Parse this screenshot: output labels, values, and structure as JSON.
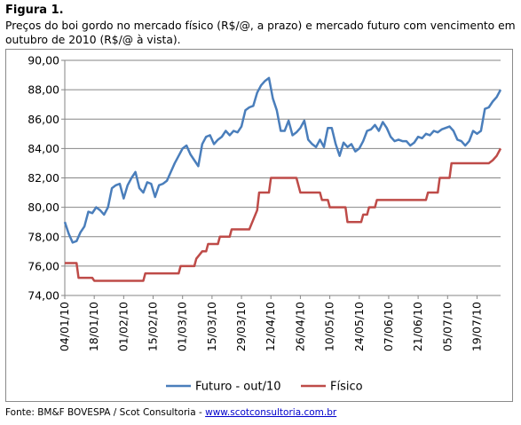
{
  "figure_label": "Figura 1.",
  "caption": "Preços do boi gordo no mercado físico (R$/@, a prazo) e mercado futuro com vencimento em outubro de 2010 (R$/@ à vista).",
  "source_prefix": "Fonte: BM&F BOVESPA / Scot Consultoria - ",
  "source_link": "www.scotconsultoria.com.br",
  "colors": {
    "futuro": "#4a7ebb",
    "fisico": "#be4b48",
    "grid": "#868686"
  },
  "chart_data": {
    "type": "line",
    "ylim": [
      74,
      90
    ],
    "yticks": [
      "74,00",
      "76,00",
      "78,00",
      "80,00",
      "82,00",
      "84,00",
      "86,00",
      "88,00",
      "90,00"
    ],
    "xticks": [
      "04/01/10",
      "18/01/10",
      "01/02/10",
      "15/02/10",
      "01/03/10",
      "15/03/10",
      "29/03/10",
      "12/04/10",
      "26/04/10",
      "10/05/10",
      "24/05/10",
      "07/06/10",
      "21/06/10",
      "05/07/10",
      "19/07/10"
    ],
    "grid": "horizontal",
    "legend_position": "bottom",
    "series": [
      {
        "name": "Futuro - out/10",
        "points": [
          [
            0,
            79.0
          ],
          [
            1,
            78.2
          ],
          [
            2,
            77.6
          ],
          [
            3,
            77.7
          ],
          [
            4,
            78.3
          ],
          [
            5,
            78.7
          ],
          [
            6,
            79.7
          ],
          [
            7,
            79.6
          ],
          [
            8,
            80.0
          ],
          [
            9,
            79.8
          ],
          [
            10,
            79.5
          ],
          [
            11,
            80.0
          ],
          [
            12,
            81.3
          ],
          [
            13,
            81.5
          ],
          [
            14,
            81.6
          ],
          [
            15,
            80.6
          ],
          [
            16,
            81.5
          ],
          [
            17,
            82.0
          ],
          [
            18,
            82.4
          ],
          [
            19,
            81.3
          ],
          [
            20,
            81.0
          ],
          [
            21,
            81.7
          ],
          [
            22,
            81.6
          ],
          [
            23,
            80.7
          ],
          [
            24,
            81.5
          ],
          [
            25,
            81.6
          ],
          [
            26,
            81.8
          ],
          [
            27,
            82.4
          ],
          [
            28,
            83.0
          ],
          [
            29,
            83.5
          ],
          [
            30,
            84.0
          ],
          [
            31,
            84.2
          ],
          [
            32,
            83.6
          ],
          [
            33,
            83.2
          ],
          [
            34,
            82.8
          ],
          [
            35,
            84.3
          ],
          [
            36,
            84.8
          ],
          [
            37,
            84.9
          ],
          [
            38,
            84.3
          ],
          [
            39,
            84.6
          ],
          [
            40,
            84.8
          ],
          [
            41,
            85.2
          ],
          [
            42,
            84.9
          ],
          [
            43,
            85.2
          ],
          [
            44,
            85.1
          ],
          [
            45,
            85.5
          ],
          [
            46,
            86.6
          ],
          [
            47,
            86.8
          ],
          [
            48,
            86.9
          ],
          [
            49,
            87.8
          ],
          [
            50,
            88.3
          ],
          [
            51,
            88.6
          ],
          [
            52,
            88.8
          ],
          [
            53,
            87.4
          ],
          [
            54,
            86.6
          ],
          [
            55,
            85.2
          ],
          [
            56,
            85.2
          ],
          [
            57,
            85.9
          ],
          [
            58,
            84.9
          ],
          [
            59,
            85.1
          ],
          [
            60,
            85.4
          ],
          [
            61,
            85.9
          ],
          [
            62,
            84.6
          ],
          [
            63,
            84.3
          ],
          [
            64,
            84.1
          ],
          [
            65,
            84.6
          ],
          [
            66,
            84.1
          ],
          [
            67,
            85.4
          ],
          [
            68,
            85.4
          ],
          [
            69,
            84.3
          ],
          [
            70,
            83.5
          ],
          [
            71,
            84.4
          ],
          [
            72,
            84.1
          ],
          [
            73,
            84.3
          ],
          [
            74,
            83.8
          ],
          [
            75,
            84.0
          ],
          [
            76,
            84.5
          ],
          [
            77,
            85.2
          ],
          [
            78,
            85.3
          ],
          [
            79,
            85.6
          ],
          [
            80,
            85.2
          ],
          [
            81,
            85.8
          ],
          [
            82,
            85.4
          ],
          [
            83,
            84.8
          ],
          [
            84,
            84.5
          ],
          [
            85,
            84.6
          ],
          [
            86,
            84.5
          ],
          [
            87,
            84.5
          ],
          [
            88,
            84.2
          ],
          [
            89,
            84.4
          ],
          [
            90,
            84.8
          ],
          [
            91,
            84.7
          ],
          [
            92,
            85.0
          ],
          [
            93,
            84.9
          ],
          [
            94,
            85.2
          ],
          [
            95,
            85.1
          ],
          [
            96,
            85.3
          ],
          [
            97,
            85.4
          ],
          [
            98,
            85.5
          ],
          [
            99,
            85.2
          ],
          [
            100,
            84.6
          ],
          [
            101,
            84.5
          ],
          [
            102,
            84.2
          ],
          [
            103,
            84.5
          ],
          [
            104,
            85.2
          ],
          [
            105,
            85.0
          ],
          [
            106,
            85.2
          ],
          [
            107,
            86.7
          ],
          [
            108,
            86.8
          ],
          [
            109,
            87.2
          ],
          [
            110,
            87.5
          ],
          [
            111,
            88.0
          ]
        ]
      },
      {
        "name": "Físico",
        "points": [
          [
            0,
            76.2
          ],
          [
            3,
            76.2
          ],
          [
            3.5,
            75.2
          ],
          [
            7,
            75.2
          ],
          [
            7.5,
            75.0
          ],
          [
            20,
            75.0
          ],
          [
            20.5,
            75.5
          ],
          [
            29,
            75.5
          ],
          [
            29.5,
            76.0
          ],
          [
            33,
            76.0
          ],
          [
            33.5,
            76.5
          ],
          [
            35,
            77.0
          ],
          [
            36,
            77.0
          ],
          [
            36.5,
            77.5
          ],
          [
            39,
            77.5
          ],
          [
            39.5,
            78.0
          ],
          [
            42,
            78.0
          ],
          [
            42.5,
            78.5
          ],
          [
            47,
            78.5
          ],
          [
            49,
            79.8
          ],
          [
            49.5,
            81.0
          ],
          [
            52,
            81.0
          ],
          [
            52.5,
            82.0
          ],
          [
            59,
            82.0
          ],
          [
            60,
            81.0
          ],
          [
            65,
            81.0
          ],
          [
            65.5,
            80.5
          ],
          [
            67,
            80.5
          ],
          [
            67.5,
            80.0
          ],
          [
            71.5,
            80.0
          ],
          [
            72,
            79.0
          ],
          [
            75.5,
            79.0
          ],
          [
            76,
            79.5
          ],
          [
            77,
            79.5
          ],
          [
            77.5,
            80.0
          ],
          [
            79,
            80.0
          ],
          [
            79.5,
            80.5
          ],
          [
            92,
            80.5
          ],
          [
            92.5,
            81.0
          ],
          [
            95,
            81.0
          ],
          [
            95.5,
            82.0
          ],
          [
            98,
            82.0
          ],
          [
            98.5,
            83.0
          ],
          [
            108,
            83.0
          ],
          [
            109,
            83.2
          ],
          [
            110,
            83.5
          ],
          [
            111,
            84.0
          ]
        ]
      }
    ]
  }
}
